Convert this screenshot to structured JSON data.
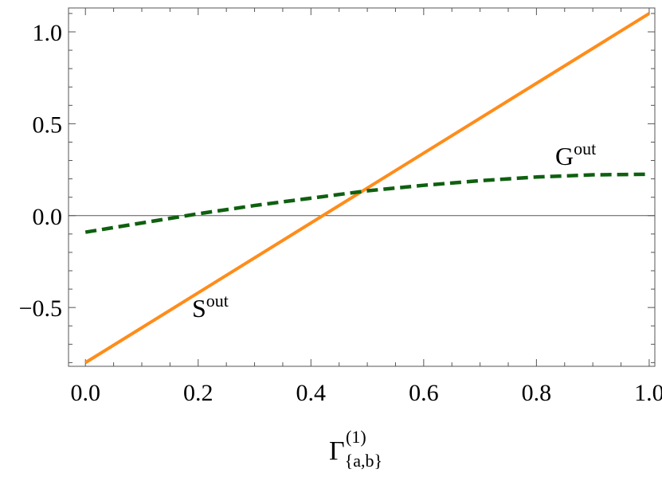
{
  "chart_data": {
    "type": "line",
    "title": "",
    "xlabel": {
      "base": "Γ",
      "sub": "{a,b}",
      "sup": "(1)"
    },
    "ylabel": "",
    "xlim": [
      -0.03,
      1.01
    ],
    "ylim": [
      -0.82,
      1.13
    ],
    "xticks": [
      0.0,
      0.2,
      0.4,
      0.6,
      0.8,
      1.0
    ],
    "xtick_labels": [
      "0.0",
      "0.2",
      "0.4",
      "0.6",
      "0.8",
      "1.0"
    ],
    "yticks": [
      -0.5,
      0.0,
      0.5,
      1.0
    ],
    "ytick_labels": [
      "−0.5",
      "0.0",
      "0.5",
      "1.0"
    ],
    "grid": false,
    "zero_line": true,
    "series": [
      {
        "name": "S",
        "name_sup": "out",
        "color": "#ff8c1a",
        "style": "solid",
        "x": [
          0.0,
          1.0
        ],
        "y": [
          -0.8,
          1.1
        ]
      },
      {
        "name": "G",
        "name_sup": "out",
        "color": "#0f6010",
        "style": "dashed",
        "x": [
          0.0,
          0.1,
          0.2,
          0.3,
          0.4,
          0.5,
          0.6,
          0.7,
          0.8,
          0.9,
          1.0
        ],
        "y": [
          -0.09,
          -0.04,
          0.01,
          0.055,
          0.095,
          0.135,
          0.165,
          0.19,
          0.21,
          0.222,
          0.225
        ]
      }
    ]
  }
}
